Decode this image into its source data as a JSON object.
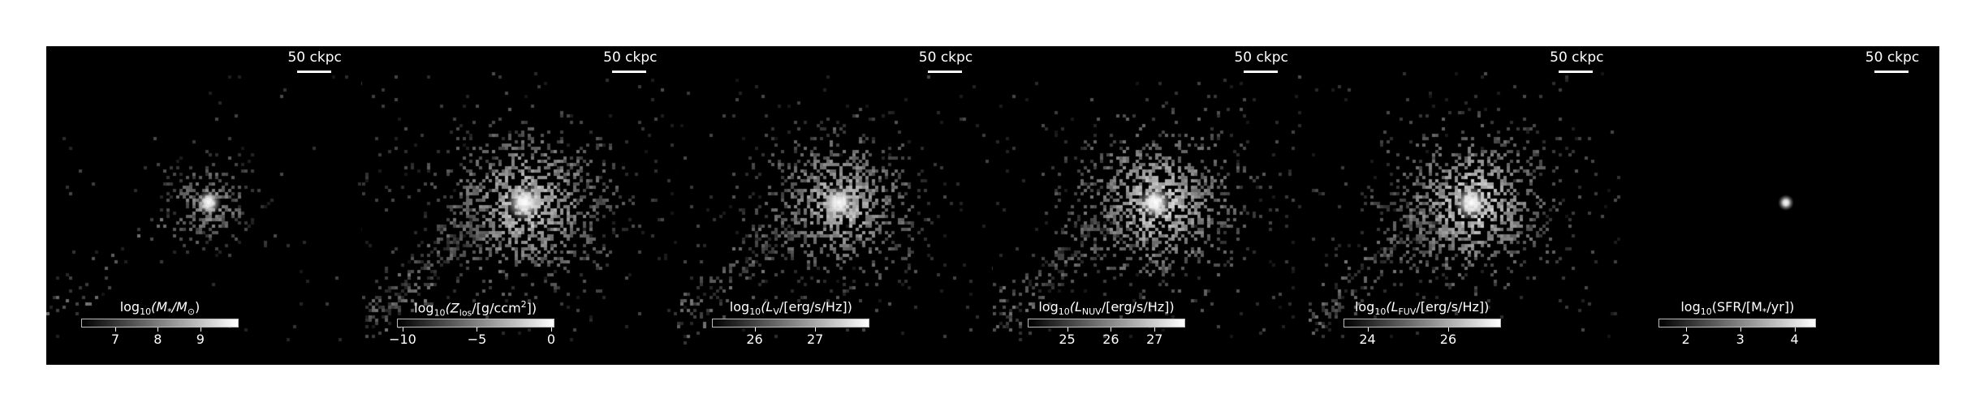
{
  "chart_data": [
    {
      "type": "heatmap",
      "panel": 1,
      "scale_bar_label": "50 ckpc",
      "colorbar": {
        "label_prefix": "log",
        "label_sub": "10",
        "label_body": "(M",
        "label_star": "*",
        "label_slash": "/M",
        "label_sun": "⊙",
        "label_end": ")",
        "vmin": 6.2,
        "vmax": 9.9,
        "ticks": [
          7,
          8,
          9
        ],
        "tick_labels": [
          "7",
          "8",
          "9"
        ]
      },
      "colormap": "greys_r"
    },
    {
      "type": "heatmap",
      "panel": 2,
      "scale_bar_label": "50 ckpc",
      "colorbar": {
        "label_prefix": "log",
        "label_sub": "10",
        "label_body": "(Z",
        "label_sub2": "los",
        "label_end": "/[g/ccm",
        "label_sup": "2",
        "label_close": "])",
        "vmin": -10.4,
        "vmax": 0.2,
        "ticks": [
          -10,
          -5,
          0
        ],
        "tick_labels": [
          "−10",
          "−5",
          "0"
        ]
      },
      "colormap": "greys_r"
    },
    {
      "type": "heatmap",
      "panel": 3,
      "scale_bar_label": "50 ckpc",
      "colorbar": {
        "label_prefix": "log",
        "label_sub": "10",
        "label_body": "(L",
        "label_sub2": "V",
        "label_end": "/[erg/s/Hz])",
        "vmin": 25.3,
        "vmax": 27.9,
        "ticks": [
          26,
          27
        ],
        "tick_labels": [
          "26",
          "27"
        ]
      },
      "colormap": "greys_r"
    },
    {
      "type": "heatmap",
      "panel": 4,
      "scale_bar_label": "50 ckpc",
      "colorbar": {
        "label_prefix": "log",
        "label_sub": "10",
        "label_body": "(L",
        "label_sub2": "NUV",
        "label_end": "/[erg/s/Hz])",
        "vmin": 24.1,
        "vmax": 27.7,
        "ticks": [
          25,
          26,
          27
        ],
        "tick_labels": [
          "25",
          "26",
          "27"
        ]
      },
      "colormap": "greys_r"
    },
    {
      "type": "heatmap",
      "panel": 5,
      "scale_bar_label": "50 ckpc",
      "colorbar": {
        "label_prefix": "log",
        "label_sub": "10",
        "label_body": "(L",
        "label_sub2": "FUV",
        "label_end": "/[erg/s/Hz])",
        "vmin": 23.4,
        "vmax": 27.3,
        "ticks": [
          24,
          26
        ],
        "tick_labels": [
          "24",
          "26"
        ]
      },
      "colormap": "greys_r"
    },
    {
      "type": "heatmap",
      "panel": 6,
      "scale_bar_label": "50 ckpc",
      "colorbar": {
        "label_prefix": "log",
        "label_sub": "10",
        "label_body": "(SFR/[M",
        "label_star": "*",
        "label_end": "/yr])",
        "vmin": 1.5,
        "vmax": 4.4,
        "ticks": [
          2,
          3,
          4
        ],
        "tick_labels": [
          "2",
          "3",
          "4"
        ]
      },
      "colormap": "greys_r"
    }
  ]
}
